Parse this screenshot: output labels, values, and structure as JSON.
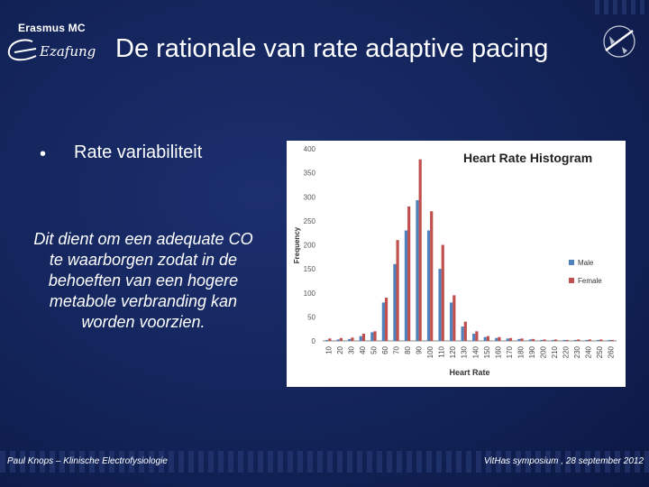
{
  "logo": {
    "top_text": "Erasmus MC",
    "script_text": "Ezafung"
  },
  "slide": {
    "title": "De rationale van rate adaptive pacing",
    "bullet": "Rate variabiliteit",
    "body": "Dit dient om een adequate CO te waarborgen zodat in de behoeften van een hogere metabole verbranding kan worden voorzien."
  },
  "footer": {
    "left": "Paul Knops – Klinische Electrofysiologie",
    "right": "VitHas symposium , 28 september 2012"
  },
  "colors": {
    "male": "#4f81bd",
    "female": "#c0504d",
    "background": "#13245a"
  },
  "chart_data": {
    "type": "bar",
    "title": "Heart Rate Histogram",
    "xlabel": "Heart Rate",
    "ylabel": "Frequency",
    "ylim": [
      0,
      400
    ],
    "yticks": [
      0,
      50,
      100,
      150,
      200,
      250,
      300,
      350,
      400
    ],
    "grid": false,
    "legend_position": "right",
    "categories": [
      "10",
      "20",
      "30",
      "40",
      "50",
      "60",
      "70",
      "80",
      "90",
      "100",
      "110",
      "120",
      "130",
      "140",
      "150",
      "160",
      "170",
      "180",
      "190",
      "200",
      "210",
      "220",
      "230",
      "240",
      "250",
      "260"
    ],
    "series": [
      {
        "name": "Male",
        "values": [
          2,
          3,
          4,
          10,
          18,
          80,
          160,
          230,
          293,
          230,
          150,
          80,
          30,
          15,
          8,
          6,
          5,
          4,
          3,
          2,
          2,
          2,
          2,
          2,
          2,
          2
        ]
      },
      {
        "name": "Female",
        "values": [
          5,
          6,
          7,
          15,
          20,
          90,
          210,
          280,
          378,
          270,
          200,
          95,
          40,
          20,
          10,
          8,
          6,
          5,
          4,
          3,
          3,
          2,
          3,
          3,
          3,
          2
        ]
      }
    ]
  }
}
